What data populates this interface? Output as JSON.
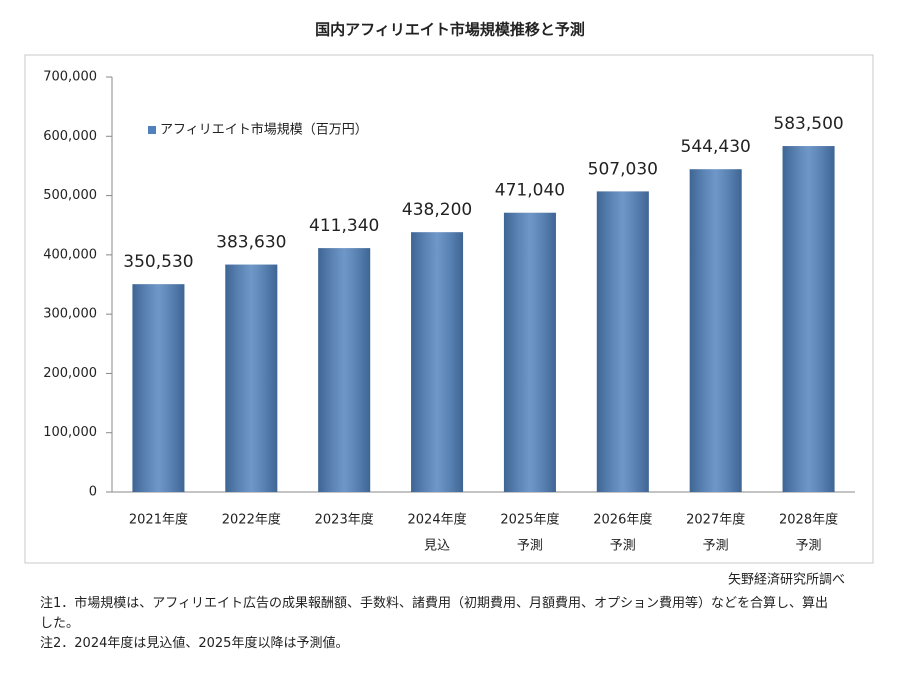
{
  "chart_data": {
    "type": "bar",
    "title": "国内アフィリエイト市場規模推移と予測",
    "categories": [
      "2021年度",
      "2022年度",
      "2023年度",
      "2024年度",
      "2025年度",
      "2026年度",
      "2027年度",
      "2028年度"
    ],
    "category_sublabels": [
      null,
      null,
      null,
      "見込",
      "予測",
      "予測",
      "予測",
      "予測"
    ],
    "series": [
      {
        "name": "アフィリエイト市場規模（百万円）",
        "color": "#4f81bd",
        "values": [
          350530,
          383630,
          411340,
          438200,
          471040,
          507030,
          544430,
          583500
        ],
        "value_labels": [
          "350,530",
          "383,630",
          "411,340",
          "438,200",
          "471,040",
          "507,030",
          "544,430",
          "583,500"
        ]
      }
    ],
    "ylim": [
      0,
      700000
    ],
    "yticks": [
      0,
      {
        "value": 100000,
        "label": "100,000"
      },
      {
        "value": 200000,
        "label": "200,000"
      },
      {
        "value": 300000,
        "label": "300,000"
      },
      {
        "value": 400000,
        "label": "400,000"
      },
      {
        "value": 500000,
        "label": "500,000"
      },
      {
        "value": 600000,
        "label": "600,000"
      },
      {
        "value": 700000,
        "label": "700,000"
      }
    ],
    "grid": false,
    "legend": "top-left",
    "source": "矢野経済研究所調べ",
    "notes": [
      "注1．市場規模は、アフィリエイト広告の成果報酬額、手数料、諸費用（初期費用、月額費用、オプション費用等）などを合算し、算出した。",
      "注2．2024年度は見込値、2025年度以降は予測値。"
    ]
  }
}
